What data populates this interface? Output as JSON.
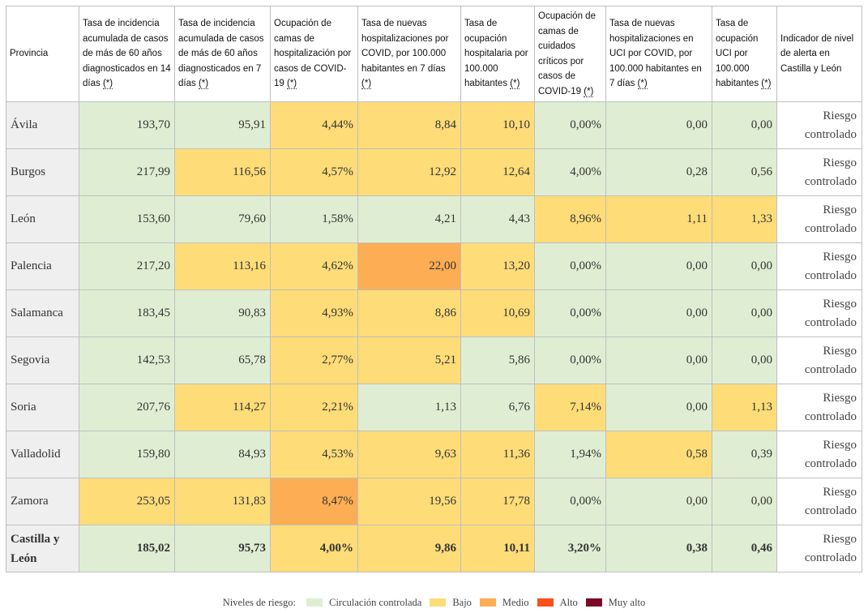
{
  "headers": [
    {
      "text": "Provincia",
      "ast": ""
    },
    {
      "text": "Tasa de incidencia acumulada de casos de más de 60 años diagnosticados en 14 días ",
      "ast": "(*)"
    },
    {
      "text": "Tasa de incidencia acumulada de casos de más de 60 años diagnosticados en 7 días ",
      "ast": "(*)"
    },
    {
      "text": "Ocupación de camas de hospitalización por casos de COVID-19 ",
      "ast": "(*)"
    },
    {
      "text": "Tasa de nuevas hospitalizaciones por COVID, por 100.000 habitantes en 7 días ",
      "ast": "(*)"
    },
    {
      "text": "Tasa de ocupación hospitalaria por 100.000 habitantes ",
      "ast": "(*)"
    },
    {
      "text": "Ocupación de camas de cuidados críticos por casos de COVID-19 ",
      "ast": "(*)"
    },
    {
      "text": "Tasa de nuevas hospitalizaciones en UCI por COVID, por 100.000 habitantes en 7 días ",
      "ast": "(*)"
    },
    {
      "text": "Tasa de ocupación UCI por 100.000 habitantes ",
      "ast": "(*)"
    },
    {
      "text": "Indicador de nivel de alerta en Castilla y León",
      "ast": ""
    }
  ],
  "rows": [
    {
      "province": "Ávila",
      "values": [
        "193,70",
        "95,91",
        "4,44%",
        "8,84",
        "10,10",
        "0,00%",
        "0,00",
        "0,00"
      ],
      "levels": [
        "ctrl",
        "ctrl",
        "bajo",
        "bajo",
        "bajo",
        "ctrl",
        "ctrl",
        "ctrl"
      ],
      "alert": "Riesgo controlado"
    },
    {
      "province": "Burgos",
      "values": [
        "217,99",
        "116,56",
        "4,57%",
        "12,92",
        "12,64",
        "4,00%",
        "0,28",
        "0,56"
      ],
      "levels": [
        "ctrl",
        "bajo",
        "bajo",
        "bajo",
        "bajo",
        "ctrl",
        "ctrl",
        "ctrl"
      ],
      "alert": "Riesgo controlado"
    },
    {
      "province": "León",
      "values": [
        "153,60",
        "79,60",
        "1,58%",
        "4,21",
        "4,43",
        "8,96%",
        "1,11",
        "1,33"
      ],
      "levels": [
        "ctrl",
        "ctrl",
        "ctrl",
        "ctrl",
        "ctrl",
        "bajo",
        "bajo",
        "bajo"
      ],
      "alert": "Riesgo controlado"
    },
    {
      "province": "Palencia",
      "values": [
        "217,20",
        "113,16",
        "4,62%",
        "22,00",
        "13,20",
        "0,00%",
        "0,00",
        "0,00"
      ],
      "levels": [
        "ctrl",
        "bajo",
        "bajo",
        "medio",
        "bajo",
        "ctrl",
        "ctrl",
        "ctrl"
      ],
      "alert": "Riesgo controlado"
    },
    {
      "province": "Salamanca",
      "values": [
        "183,45",
        "90,83",
        "4,93%",
        "8,86",
        "10,69",
        "0,00%",
        "0,00",
        "0,00"
      ],
      "levels": [
        "ctrl",
        "ctrl",
        "bajo",
        "bajo",
        "bajo",
        "ctrl",
        "ctrl",
        "ctrl"
      ],
      "alert": "Riesgo controlado"
    },
    {
      "province": "Segovia",
      "values": [
        "142,53",
        "65,78",
        "2,77%",
        "5,21",
        "5,86",
        "0,00%",
        "0,00",
        "0,00"
      ],
      "levels": [
        "ctrl",
        "ctrl",
        "bajo",
        "bajo",
        "ctrl",
        "ctrl",
        "ctrl",
        "ctrl"
      ],
      "alert": "Riesgo controlado"
    },
    {
      "province": "Soria",
      "values": [
        "207,76",
        "114,27",
        "2,21%",
        "1,13",
        "6,76",
        "7,14%",
        "0,00",
        "1,13"
      ],
      "levels": [
        "ctrl",
        "bajo",
        "bajo",
        "ctrl",
        "ctrl",
        "bajo",
        "ctrl",
        "bajo"
      ],
      "alert": "Riesgo controlado"
    },
    {
      "province": "Valladolid",
      "values": [
        "159,80",
        "84,93",
        "4,53%",
        "9,63",
        "11,36",
        "1,94%",
        "0,58",
        "0,39"
      ],
      "levels": [
        "ctrl",
        "ctrl",
        "bajo",
        "bajo",
        "bajo",
        "ctrl",
        "bajo",
        "ctrl"
      ],
      "alert": "Riesgo controlado"
    },
    {
      "province": "Zamora",
      "values": [
        "253,05",
        "131,83",
        "8,47%",
        "19,56",
        "17,78",
        "0,00%",
        "0,00",
        "0,00"
      ],
      "levels": [
        "bajo",
        "bajo",
        "medio",
        "bajo",
        "bajo",
        "ctrl",
        "ctrl",
        "ctrl"
      ],
      "alert": "Riesgo controlado"
    }
  ],
  "total": {
    "province": "Castilla y León",
    "values": [
      "185,02",
      "95,73",
      "4,00%",
      "9,86",
      "10,11",
      "3,20%",
      "0,38",
      "0,46"
    ],
    "levels": [
      "ctrl",
      "ctrl",
      "bajo",
      "bajo",
      "bajo",
      "ctrl",
      "ctrl",
      "ctrl"
    ],
    "alert": "Riesgo controlado"
  },
  "legend": {
    "title": "Niveles de riesgo:",
    "items": [
      {
        "label": "Circulación controlada",
        "level": "ctrl",
        "color": "#dfeed3"
      },
      {
        "label": "Bajo",
        "level": "bajo",
        "color": "#fedc78"
      },
      {
        "label": "Medio",
        "level": "medio",
        "color": "#fdad54"
      },
      {
        "label": "Alto",
        "level": "alto",
        "color": "#fb4e1a"
      },
      {
        "label": "Muy alto",
        "level": "muyalto",
        "color": "#7a0a26"
      }
    ]
  }
}
